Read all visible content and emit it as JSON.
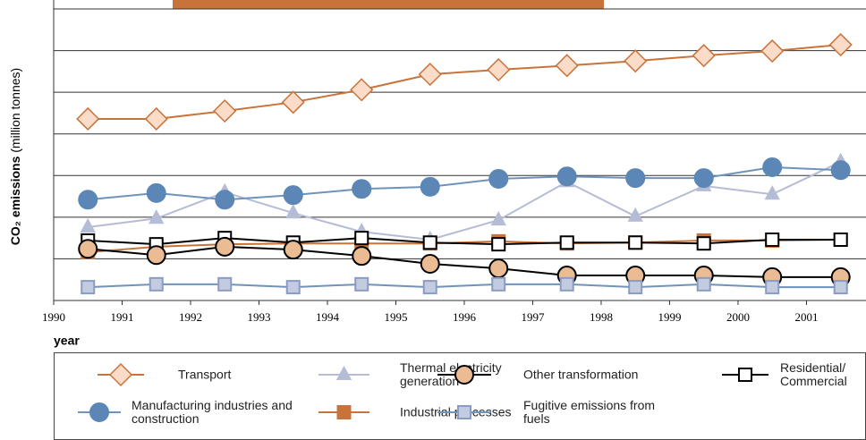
{
  "chart_data": {
    "type": "line",
    "y_label": "CO₂ emissions",
    "y_label_unit": "(million tonnes)",
    "x_label": "year",
    "xlim": [
      1990,
      2001.87
    ],
    "xticks": [
      1990,
      1991,
      1992,
      1993,
      1994,
      1995,
      1996,
      1997,
      1998,
      1999,
      2000,
      2001
    ],
    "ylim": [
      0,
      70
    ],
    "yticks": [
      0,
      10,
      20,
      30,
      40,
      50,
      60,
      70
    ],
    "grid": true,
    "x": [
      1990.5,
      1991.5,
      1992.5,
      1993.5,
      1994.5,
      1995.5,
      1996.5,
      1997.5,
      1998.5,
      1999.5,
      2000.5,
      2001.5
    ],
    "series": [
      {
        "name": "Thermal electricity generation",
        "color": "#b4bcd6",
        "marker": "triangle",
        "marker_fill": "#b4bcd6",
        "marker_stroke": "#b4bcd6",
        "values": [
          17.6,
          19.7,
          26.0,
          21.0,
          16.5,
          14.6,
          19.3,
          28.5,
          20.2,
          27.5,
          25.5,
          33.3
        ]
      },
      {
        "name": "Transport",
        "color": "#c8733a",
        "marker": "diamond",
        "marker_fill": "#fbdcc8",
        "marker_stroke": "#c8733a",
        "values": [
          43.6,
          43.6,
          45.5,
          47.6,
          50.6,
          54.3,
          55.4,
          56.4,
          57.5,
          58.8,
          59.9,
          61.4
        ]
      },
      {
        "name": "Manufacturing industries and construction",
        "color": "#6f93bb",
        "marker": "circle",
        "marker_fill": "#5b86b5",
        "marker_stroke": "#5b86b5",
        "values": [
          24.2,
          25.8,
          24.2,
          25.3,
          26.8,
          27.3,
          29.2,
          29.8,
          29.4,
          29.4,
          32.0,
          31.3
        ]
      },
      {
        "name": "Industrial processes",
        "color": "#c8733a",
        "marker": "square",
        "marker_fill": "#c8733a",
        "marker_stroke": "#c8733a",
        "values": [
          11.6,
          12.9,
          13.5,
          13.7,
          13.7,
          13.7,
          14.2,
          13.7,
          13.9,
          14.4,
          14.4,
          14.6
        ]
      },
      {
        "name": "Residential/ Commercial",
        "color": "#000000",
        "marker": "square",
        "marker_fill": "#ffffff",
        "marker_stroke": "#000000",
        "values": [
          14.4,
          13.5,
          15.0,
          13.9,
          15.0,
          13.9,
          13.5,
          13.9,
          13.9,
          13.7,
          14.6,
          14.6
        ]
      },
      {
        "name": "Other transformation",
        "color": "#000000",
        "marker": "circle",
        "marker_fill": "#ebbb93",
        "marker_stroke": "#000000",
        "values": [
          12.4,
          10.9,
          12.9,
          12.2,
          10.7,
          8.8,
          7.7,
          6.0,
          6.0,
          6.0,
          5.6,
          5.6
        ]
      },
      {
        "name": "Fugitive emissions from fuels",
        "color": "#6f93bb",
        "marker": "square",
        "marker_fill": "#c3cbe0",
        "marker_stroke": "#8a9cc2",
        "values": [
          3.2,
          3.9,
          3.9,
          3.2,
          3.9,
          3.2,
          3.9,
          3.9,
          3.2,
          3.9,
          3.2,
          3.2
        ]
      }
    ]
  }
}
